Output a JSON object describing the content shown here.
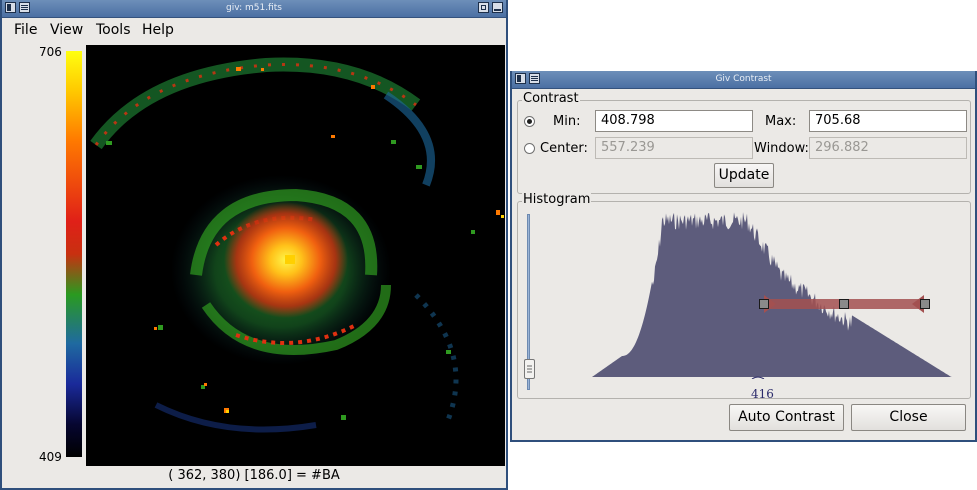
{
  "main_window": {
    "title": "giv: m51.fits",
    "menus": [
      "File",
      "View",
      "Tools",
      "Help"
    ],
    "colorbar": {
      "max_label": "706",
      "min_label": "409"
    },
    "status": "( 362,  380) [186.0] = #BA"
  },
  "contrast_window": {
    "title": "Giv Contrast",
    "contrast_group": "Contrast",
    "min_label": "Min:",
    "min_value": "408.798",
    "max_label": "Max:",
    "max_value": "705.68",
    "center_label": "Center:",
    "center_value": "557.239",
    "window_label": "Window:",
    "window_value": "296.882",
    "selected_mode": "min-max",
    "update_label": "Update",
    "histogram_group": "Histogram",
    "histogram_marker": "416",
    "histogram_color": "#5d5c7c",
    "range_color": "#a35050",
    "auto_contrast_label": "Auto Contrast",
    "close_label": "Close"
  }
}
